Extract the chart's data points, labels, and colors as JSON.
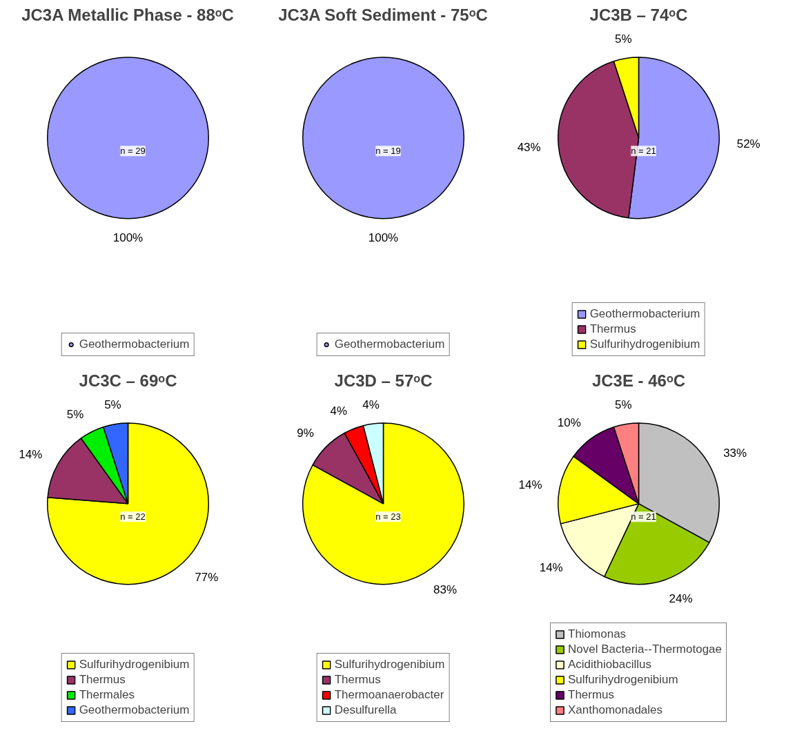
{
  "chart_data": [
    {
      "type": "pie",
      "title": "JC3A Metallic Phase - 88ᵒC",
      "categories": [
        "Geothermobacterium"
      ],
      "values": [
        100
      ],
      "colors": [
        "#9999ff"
      ],
      "value_labels": [
        "100%"
      ],
      "annotations": [
        "n = 29"
      ],
      "legend": "bottom"
    },
    {
      "type": "pie",
      "title": "JC3A Soft Sediment - 75ᵒC",
      "categories": [
        "Geothermobacterium"
      ],
      "values": [
        100
      ],
      "colors": [
        "#9999ff"
      ],
      "value_labels": [
        "100%"
      ],
      "annotations": [
        "n = 19"
      ],
      "legend": "bottom"
    },
    {
      "type": "pie",
      "title": "JC3B – 74ᵒC",
      "categories": [
        "Geothermobacterium",
        "Thermus",
        "Sulfurihydrogenibium"
      ],
      "values": [
        52,
        43,
        5
      ],
      "colors": [
        "#9999ff",
        "#993366",
        "#ffff00"
      ],
      "value_labels": [
        "52%",
        "43%",
        "5%"
      ],
      "annotations": [
        "n = 21"
      ],
      "legend": "bottom"
    },
    {
      "type": "pie",
      "title": "JC3C – 69ᵒC",
      "categories": [
        "Sulfurihydrogenibium",
        "Thermus",
        "Thermales",
        "Geothermobacterium"
      ],
      "values": [
        77,
        14,
        5,
        5
      ],
      "colors": [
        "#ffff00",
        "#993366",
        "#00ee00",
        "#3366ff"
      ],
      "value_labels": [
        "77%",
        "14%",
        "5%",
        "5%"
      ],
      "annotations": [
        "n = 22"
      ],
      "legend": "bottom"
    },
    {
      "type": "pie",
      "title": "JC3D – 57ᵒC",
      "categories": [
        "Sulfurihydrogenibium",
        "Thermus",
        "Thermoanaerobacter",
        "Desulfurella"
      ],
      "values": [
        83,
        9,
        4,
        4
      ],
      "colors": [
        "#ffff00",
        "#993366",
        "#ff0000",
        "#ccffff"
      ],
      "value_labels": [
        "83%",
        "9%",
        "4%",
        "4%"
      ],
      "annotations": [
        "n = 23"
      ],
      "legend": "bottom"
    },
    {
      "type": "pie",
      "title": "JC3E - 46ᵒC",
      "categories": [
        "Thiomonas",
        "Novel Bacteria--Thermotogae",
        "Acidithiobacillus",
        "Sulfurihydrogenibium",
        "Thermus",
        "Xanthomonadales"
      ],
      "values": [
        33,
        24,
        14,
        14,
        10,
        5
      ],
      "colors": [
        "#c0c0c0",
        "#99cc00",
        "#ffffcc",
        "#ffff00",
        "#660066",
        "#ff8080"
      ],
      "value_labels": [
        "33%",
        "24%",
        "14%",
        "14%",
        "10%",
        "5%"
      ],
      "annotations": [
        "n = 21"
      ],
      "legend": "bottom"
    }
  ]
}
